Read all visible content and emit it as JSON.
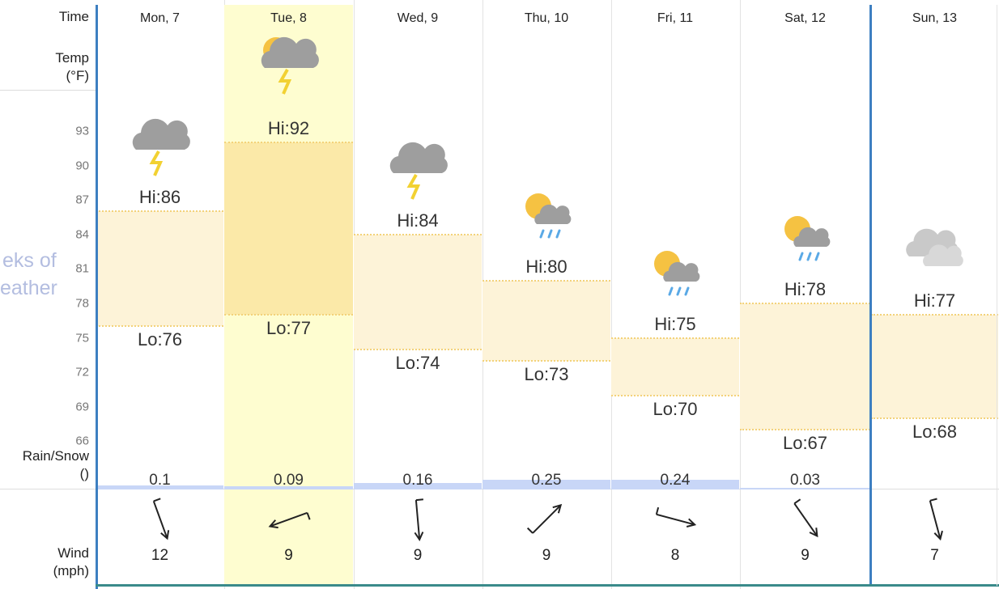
{
  "labels": {
    "time": "Time",
    "temp_line1": "Temp",
    "temp_line2": "(°F)",
    "precip_line1": "Rain/Snow",
    "precip_line2": "()",
    "wind_line1": "Wind",
    "wind_line2": "(mph)"
  },
  "watermark": {
    "line1": "eks of",
    "line2": "eather"
  },
  "ticks": [
    "93",
    "90",
    "87",
    "84",
    "81",
    "78",
    "75",
    "72",
    "69",
    "66"
  ],
  "colors": {
    "highlight": "#fefdd0",
    "band": "#fdf3d8",
    "band_highlight": "#fbe9a8",
    "precip_bar": "#c8d6f7",
    "week_divider": "#3d7fc1"
  },
  "days": [
    {
      "name": "Mon, 7",
      "hi": "Hi:86",
      "lo": "Lo:76",
      "hi_val": 86,
      "lo_val": 76,
      "icon": "thunderstorm-icon",
      "precip": "0.1",
      "precip_val": 0.1,
      "wind": "12",
      "wind_deg": 160
    },
    {
      "name": "Tue, 8",
      "hi": "Hi:92",
      "lo": "Lo:77",
      "hi_val": 92,
      "lo_val": 77,
      "icon": "sun-thunderstorm-icon",
      "precip": "0.09",
      "precip_val": 0.09,
      "wind": "9",
      "wind_deg": 250
    },
    {
      "name": "Wed, 9",
      "hi": "Hi:84",
      "lo": "Lo:74",
      "hi_val": 84,
      "lo_val": 74,
      "icon": "thunderstorm-icon",
      "precip": "0.16",
      "precip_val": 0.16,
      "wind": "9",
      "wind_deg": 175
    },
    {
      "name": "Thu, 10",
      "hi": "Hi:80",
      "lo": "Lo:73",
      "hi_val": 80,
      "lo_val": 73,
      "icon": "sun-rain-icon",
      "precip": "0.25",
      "precip_val": 0.25,
      "wind": "9",
      "wind_deg": 45
    },
    {
      "name": "Fri, 11",
      "hi": "Hi:75",
      "lo": "Lo:70",
      "hi_val": 75,
      "lo_val": 70,
      "icon": "sun-rain-icon",
      "precip": "0.24",
      "precip_val": 0.24,
      "wind": "8",
      "wind_deg": 105
    },
    {
      "name": "Sat, 12",
      "hi": "Hi:78",
      "lo": "Lo:67",
      "hi_val": 78,
      "lo_val": 67,
      "icon": "sun-rain-icon",
      "precip": "0.03",
      "precip_val": 0.03,
      "wind": "9",
      "wind_deg": 145
    },
    {
      "name": "Sun, 13",
      "hi": "Hi:77",
      "lo": "Lo:68",
      "hi_val": 77,
      "lo_val": 68,
      "icon": "cloudy-icon",
      "precip": "",
      "precip_val": 0,
      "wind": "7",
      "wind_deg": 165
    }
  ]
}
